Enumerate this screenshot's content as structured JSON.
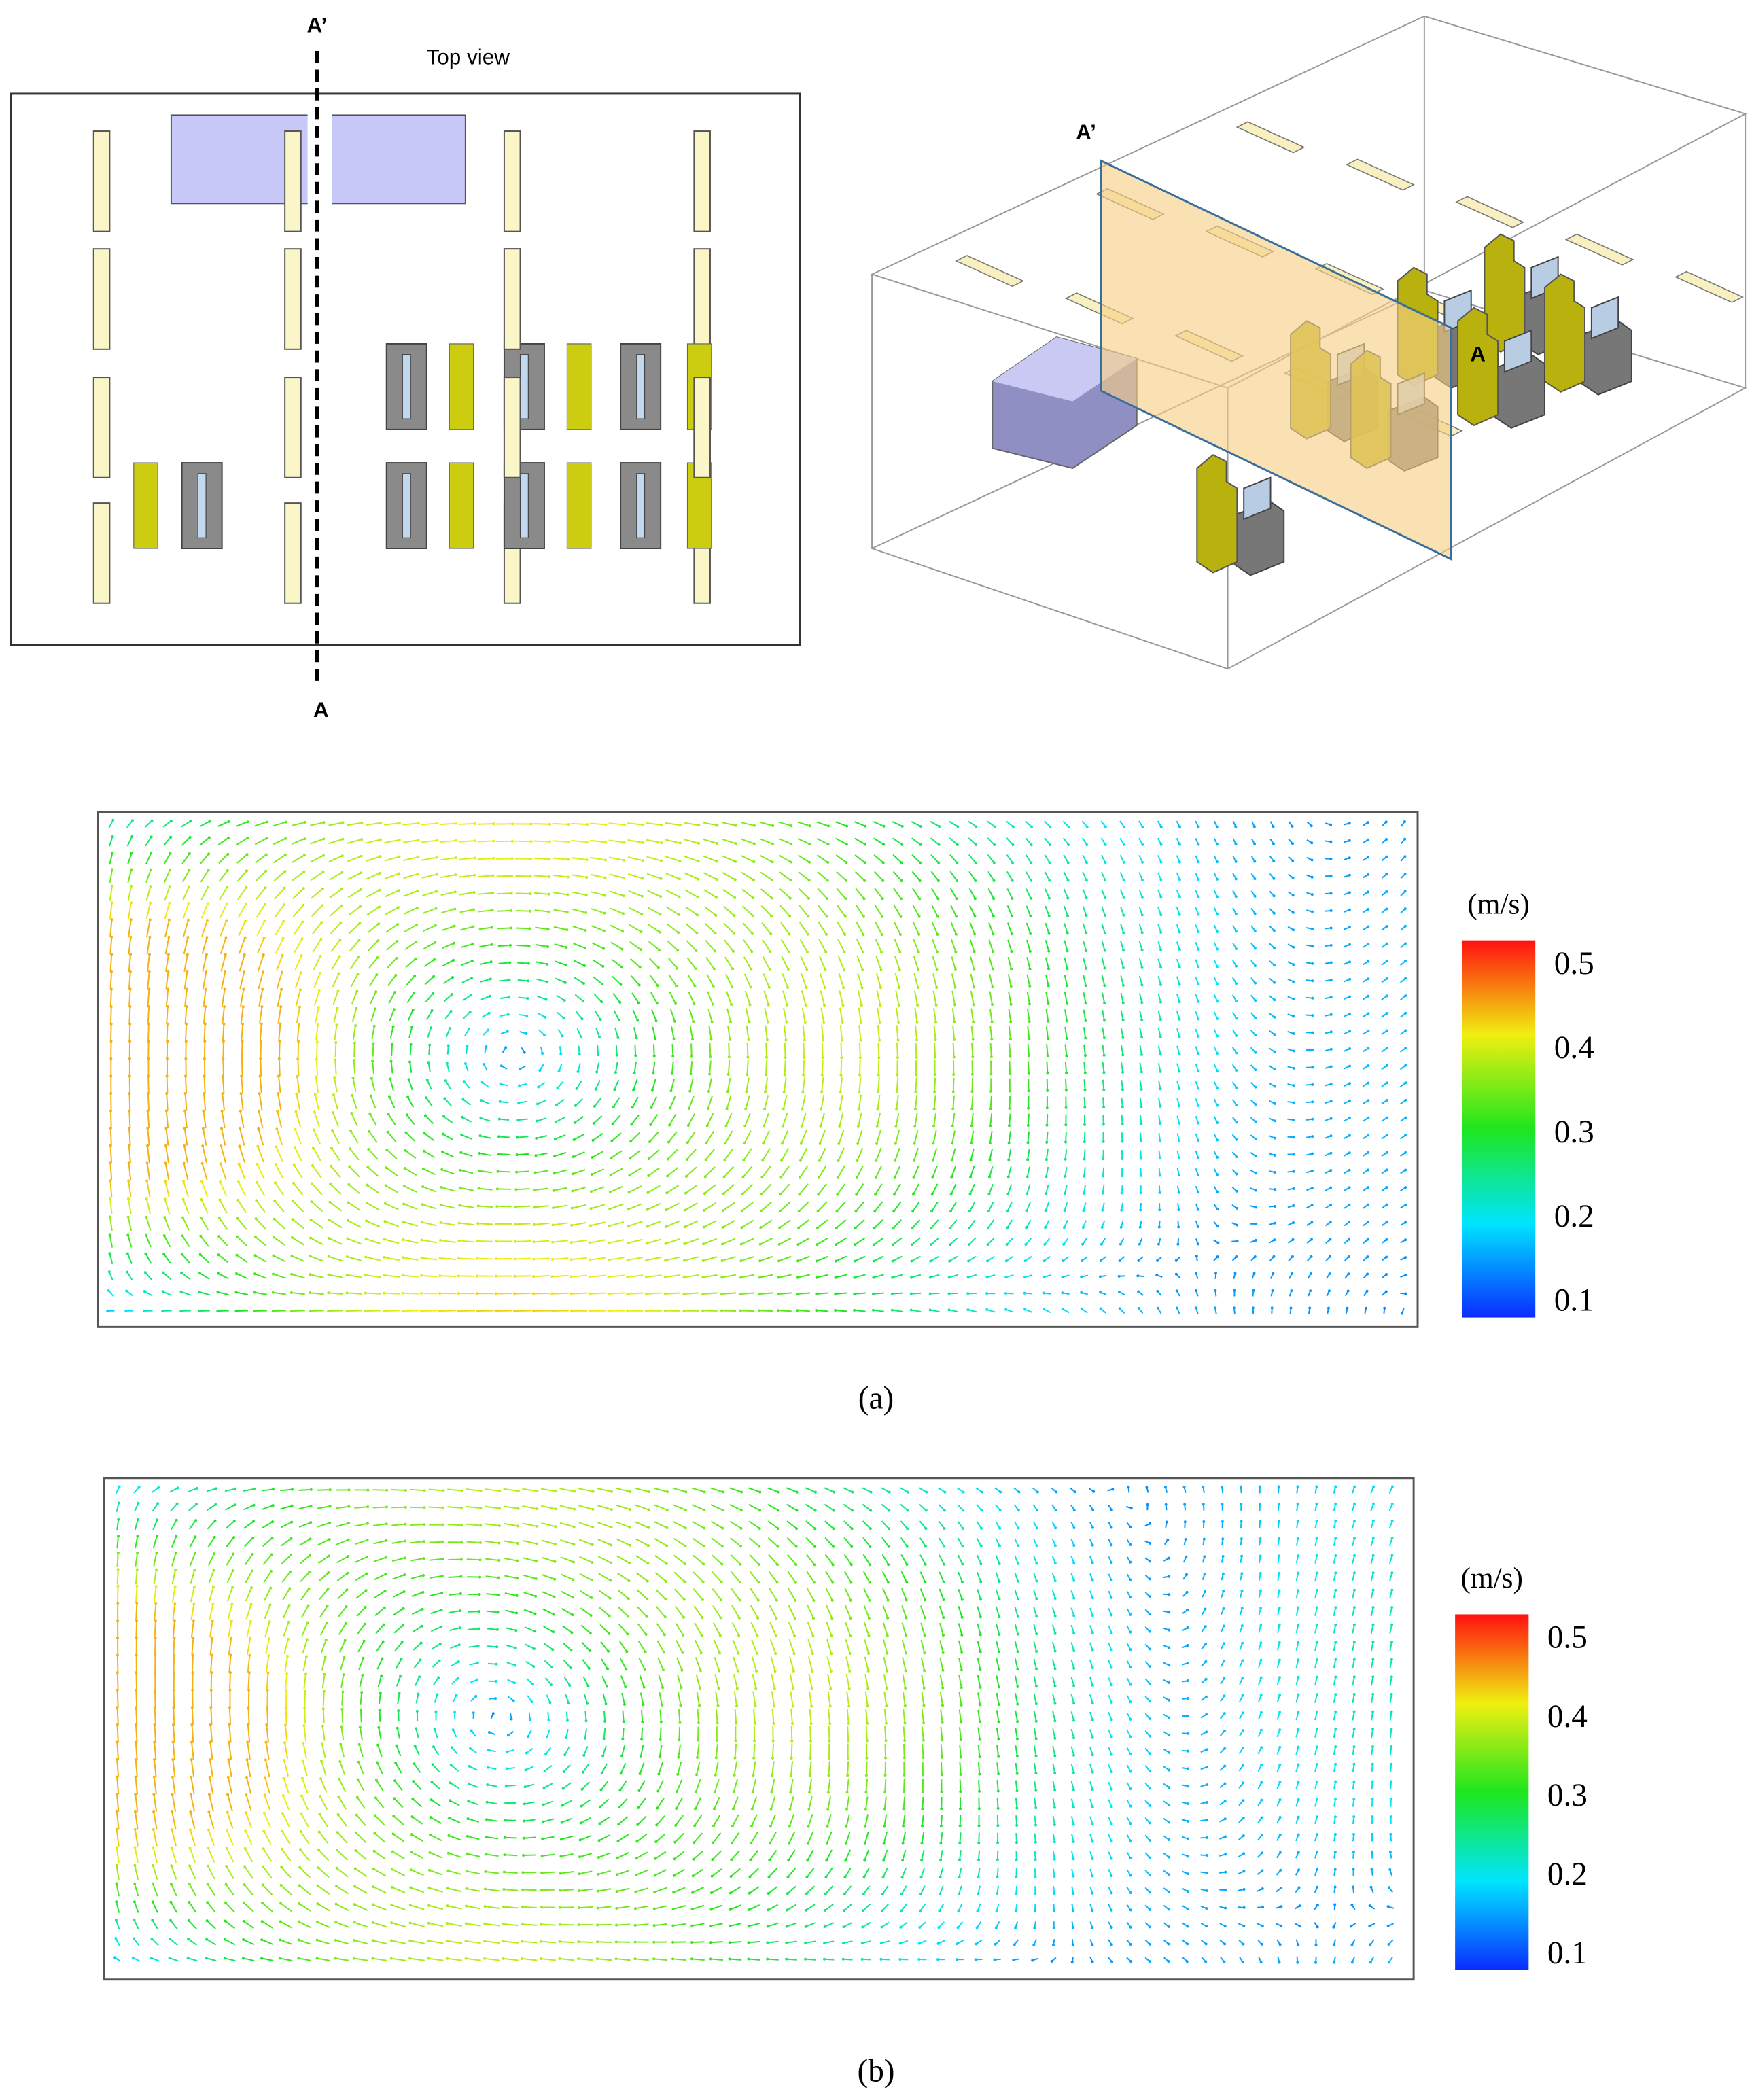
{
  "top_view": {
    "section_top_label": "A’",
    "title": "Top view",
    "section_bottom_label": "A"
  },
  "perspective_view": {
    "section_top_label": "A’",
    "section_bottom_label": "A"
  },
  "panels": [
    {
      "label": "(a)",
      "colorbar": {
        "unit": "(m/s)",
        "ticks": [
          0.5,
          0.4,
          0.3,
          0.2,
          0.1
        ]
      }
    },
    {
      "label": "(b)",
      "colorbar": {
        "unit": "(m/s)",
        "ticks": [
          0.5,
          0.4,
          0.3,
          0.2,
          0.1
        ]
      }
    }
  ]
}
